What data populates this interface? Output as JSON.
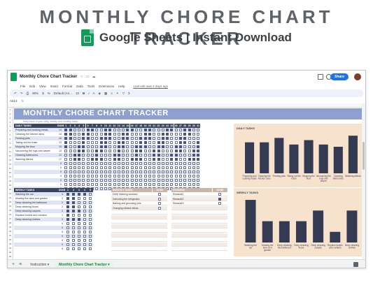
{
  "hero": {
    "title": "MONTHLY CHORE CHART TRACKER",
    "subtitle": "Google Sheets | Instant Download"
  },
  "window": {
    "doc_title": "Monthly Chore Chart Tracker",
    "share_label": "Share",
    "menu": [
      "File",
      "Edit",
      "View",
      "Insert",
      "Format",
      "Data",
      "Tools",
      "Extensions",
      "Help"
    ],
    "last_edit": "Last edit was 4 days ago",
    "toolbar": {
      "zoom": "90%",
      "font": "Default (Ari...",
      "font_size": "10"
    },
    "cell_ref": "A513",
    "fx": "fx"
  },
  "sheet": {
    "banner_title": "MONTHLY CHORE CHART TRACKER",
    "banner_sub": "Keep track of your daily, weekly and monthly tasks",
    "daily": {
      "header": "DAILY TASKS",
      "done_header": "DONE",
      "day_headers": [
        "1",
        "2",
        "3",
        "4",
        "5",
        "6",
        "7",
        "8",
        "9",
        "10",
        "11",
        "12",
        "13",
        "14",
        "15",
        "16",
        "17",
        "18",
        "19",
        "20",
        "21",
        "22",
        "23",
        "24",
        "25",
        "26",
        "27",
        "28",
        "29",
        "30",
        "31"
      ],
      "rows": [
        {
          "task": "Preparing and cooking meals",
          "done": "14"
        },
        {
          "task": "Cleaning the kitchen area",
          "done": "14"
        },
        {
          "task": "Feeding pets",
          "done": "16"
        },
        {
          "task": "Taking out the trash",
          "done": "13"
        },
        {
          "task": "Mopping the floor",
          "done": "15"
        },
        {
          "task": "Vacuuming the rugs and carpet",
          "done": "13"
        },
        {
          "task": "Cleaning bathrooms",
          "done": "12"
        },
        {
          "task": "Washing dishes",
          "done": "17"
        },
        {
          "task": "",
          "done": "0"
        },
        {
          "task": "",
          "done": "0"
        },
        {
          "task": "",
          "done": "0"
        },
        {
          "task": "",
          "done": "0"
        },
        {
          "task": "",
          "done": "0"
        },
        {
          "task": "",
          "done": "0"
        },
        {
          "task": "",
          "done": "0"
        }
      ]
    },
    "weekly": {
      "header": "WEEKLY TASKS",
      "done_header": "DONE",
      "week_headers": [
        "1",
        "2",
        "3",
        "4",
        "5"
      ],
      "rows": [
        {
          "task": "Washing the car",
          "done": "4"
        },
        {
          "task": "Mowing the lawn and garden",
          "done": "2"
        },
        {
          "task": "Deep cleaning the bathroom",
          "done": "2"
        },
        {
          "task": "Deep cleaning floors",
          "done": "2"
        },
        {
          "task": "Deep cleaning carpets",
          "done": "3"
        },
        {
          "task": "Replace towels and curtains",
          "done": "1"
        },
        {
          "task": "Deep cleaning clothes",
          "done": "3"
        },
        {
          "task": "",
          "done": "0"
        },
        {
          "task": "",
          "done": "0"
        },
        {
          "task": "",
          "done": "0"
        },
        {
          "task": "",
          "done": "0"
        },
        {
          "task": "",
          "done": "0"
        },
        {
          "task": "",
          "done": "0"
        },
        {
          "task": "",
          "done": "0"
        }
      ]
    },
    "monthly": {
      "header": "MONTHLY TASKS",
      "done_header": "DONE",
      "rows": [
        "Deep cleaning windows",
        "Defrosting the refrigerator",
        "Bathing and grooming pets",
        "Changing window blinds",
        "",
        "",
        "",
        "",
        "",
        "",
        "",
        "",
        ""
      ]
    },
    "rewards": {
      "header": "REWARDS",
      "done_header": "DONE",
      "rows": [
        "Reward#1",
        "Reward#2",
        "Reward#3",
        "",
        "",
        "",
        "",
        "",
        "",
        "",
        "",
        "",
        ""
      ]
    }
  },
  "chart_data": [
    {
      "type": "bar",
      "title": "DAILY TASKS",
      "categories": [
        "Preparing and cooking meals",
        "Cleaning the kitchen area",
        "Feeding pets",
        "Taking out the trash",
        "Mopping the floor",
        "Vacuuming the rugs and carpet",
        "Cleaning bathrooms",
        "Washing dishes"
      ],
      "values": [
        14,
        14,
        16,
        13,
        15,
        13,
        12,
        17
      ],
      "ylim": [
        0,
        18
      ],
      "color": "#343a52"
    },
    {
      "type": "bar",
      "title": "WEEKLY TASKS",
      "categories": [
        "Washing the car",
        "Mowing the lawn and garden",
        "Deep cleaning the bathroom",
        "Deep cleaning floors",
        "Deep cleaning carpets",
        "Replace towels and curtains",
        "Deep cleaning clothes"
      ],
      "values": [
        4,
        2,
        2,
        2,
        3,
        1,
        3
      ],
      "ylim": [
        0,
        4.2
      ],
      "color": "#343a52"
    }
  ],
  "tabs": {
    "items": [
      "Instruction",
      "Monthly Chore Chart Tracker"
    ],
    "active": 1
  },
  "colors": {
    "banner": "#8e9fd0",
    "dark_header": "#3a4560",
    "row_band": "#dfe5f4",
    "panel_tan": "#c9b6a6",
    "chart_bg": "#f7e2ce",
    "bar": "#343a52"
  }
}
